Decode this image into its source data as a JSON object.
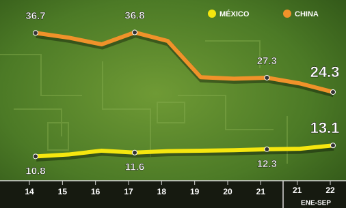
{
  "chart_data": {
    "type": "line",
    "categories": [
      "14",
      "15",
      "16",
      "17",
      "18",
      "19",
      "20",
      "21",
      "21",
      "22"
    ],
    "series": [
      {
        "name": "MÉXICO",
        "color": "#f5e60f",
        "values": [
          10.8,
          11.2,
          12.0,
          11.6,
          11.9,
          12.0,
          12.1,
          12.3,
          12.4,
          13.1
        ]
      },
      {
        "name": "CHINA",
        "color": "#f0922a",
        "values": [
          36.7,
          35.7,
          34.3,
          36.8,
          35.0,
          27.4,
          27.1,
          27.3,
          26.1,
          24.3
        ]
      }
    ],
    "ylim": [
      5.7,
      43.6
    ],
    "annotation": "ENE-SEP"
  }
}
